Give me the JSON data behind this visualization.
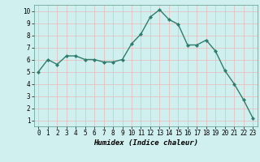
{
  "x": [
    0,
    1,
    2,
    3,
    4,
    5,
    6,
    7,
    8,
    9,
    10,
    11,
    12,
    13,
    14,
    15,
    16,
    17,
    18,
    19,
    20,
    21,
    22,
    23
  ],
  "y": [
    5.0,
    6.0,
    5.6,
    6.3,
    6.3,
    6.0,
    6.0,
    5.8,
    5.8,
    6.0,
    7.3,
    8.1,
    9.5,
    10.1,
    9.3,
    8.9,
    7.2,
    7.2,
    7.6,
    6.7,
    5.1,
    4.0,
    2.7,
    1.2
  ],
  "line_color": "#2e7d6e",
  "marker": "D",
  "marker_size": 2.0,
  "bg_color": "#cff0ee",
  "grid_color": "#e8b8b8",
  "xlabel": "Humidex (Indice chaleur)",
  "xlim": [
    -0.5,
    23.5
  ],
  "ylim": [
    0.5,
    10.5
  ],
  "yticks": [
    1,
    2,
    3,
    4,
    5,
    6,
    7,
    8,
    9,
    10
  ],
  "xticks": [
    0,
    1,
    2,
    3,
    4,
    5,
    6,
    7,
    8,
    9,
    10,
    11,
    12,
    13,
    14,
    15,
    16,
    17,
    18,
    19,
    20,
    21,
    22,
    23
  ],
  "tick_label_fontsize": 5.5,
  "xlabel_fontsize": 6.5,
  "line_width": 1.0
}
